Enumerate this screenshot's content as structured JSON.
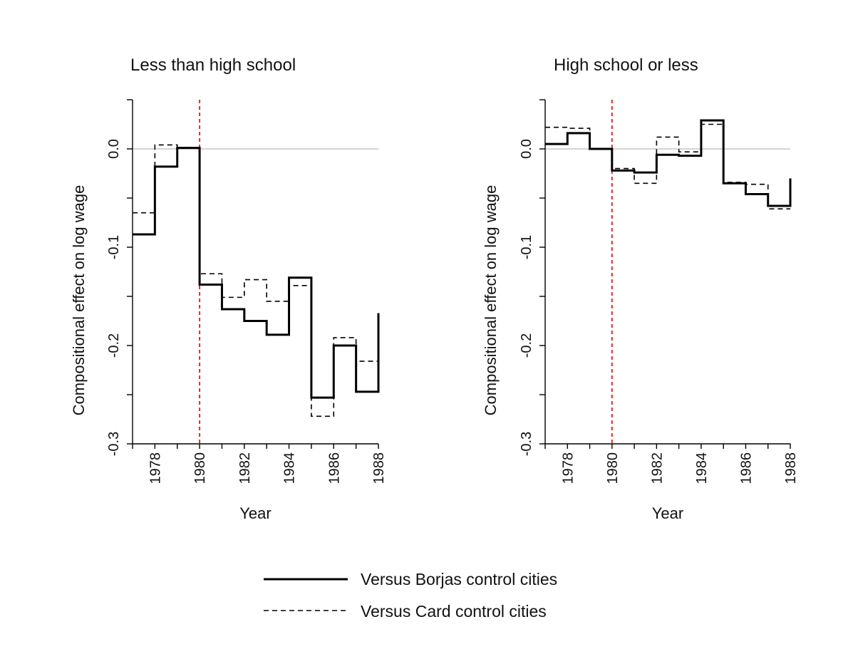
{
  "chart_data": [
    {
      "type": "line",
      "step": "post",
      "title": "Less than high school",
      "xlabel": "Year",
      "ylabel": "Compositional effect on log wage",
      "xlim": [
        1977,
        1988
      ],
      "ylim": [
        -0.3,
        0.05
      ],
      "xticks": [
        1978,
        1980,
        1982,
        1984,
        1986,
        1988
      ],
      "xtick_labels": [
        "1978",
        "1980",
        "1982",
        "1984",
        "1986",
        "1988"
      ],
      "yticks": [
        -0.3,
        -0.2,
        -0.1,
        0.0
      ],
      "ytick_labels": [
        "-0.3",
        "-0.2",
        "-0.1",
        "0.0"
      ],
      "reference_hline": 0.0,
      "reference_vline": 1980,
      "series": [
        {
          "name": "Versus Borjas control cities",
          "style": "solid",
          "x": [
            1977,
            1978,
            1979,
            1980,
            1981,
            1982,
            1983,
            1984,
            1985,
            1986,
            1987,
            1988
          ],
          "y": [
            -0.087,
            -0.018,
            0.001,
            -0.138,
            -0.163,
            -0.175,
            -0.189,
            -0.131,
            -0.253,
            -0.2,
            -0.247,
            -0.167
          ]
        },
        {
          "name": "Versus Card control cities",
          "style": "dashed",
          "x": [
            1977,
            1978,
            1979,
            1980,
            1981,
            1982,
            1983,
            1984,
            1985,
            1986,
            1987,
            1988
          ],
          "y": [
            -0.065,
            0.004,
            0.001,
            -0.127,
            -0.151,
            -0.133,
            -0.155,
            -0.139,
            -0.272,
            -0.192,
            -0.216,
            -0.216
          ]
        }
      ]
    },
    {
      "type": "line",
      "step": "post",
      "title": "High school or less",
      "xlabel": "Year",
      "ylabel": "Compositional effect on log wage",
      "xlim": [
        1977,
        1988
      ],
      "ylim": [
        -0.3,
        0.05
      ],
      "xticks": [
        1978,
        1980,
        1982,
        1984,
        1986,
        1988
      ],
      "xtick_labels": [
        "1978",
        "1980",
        "1982",
        "1984",
        "1986",
        "1988"
      ],
      "yticks": [
        -0.3,
        -0.2,
        -0.1,
        0.0
      ],
      "ytick_labels": [
        "-0.3",
        "-0.2",
        "-0.1",
        "0.0"
      ],
      "reference_hline": 0.0,
      "reference_vline": 1980,
      "series": [
        {
          "name": "Versus Borjas control cities",
          "style": "solid",
          "x": [
            1977,
            1978,
            1979,
            1980,
            1981,
            1982,
            1983,
            1984,
            1985,
            1986,
            1987,
            1988
          ],
          "y": [
            0.005,
            0.016,
            0.0,
            -0.022,
            -0.024,
            -0.006,
            -0.007,
            0.029,
            -0.035,
            -0.046,
            -0.058,
            -0.03
          ]
        },
        {
          "name": "Versus Card control cities",
          "style": "dashed",
          "x": [
            1977,
            1978,
            1979,
            1980,
            1981,
            1982,
            1983,
            1984,
            1985,
            1986,
            1987,
            1988
          ],
          "y": [
            0.022,
            0.021,
            0.0,
            -0.02,
            -0.035,
            0.012,
            -0.003,
            0.025,
            -0.034,
            -0.036,
            -0.061,
            -0.061
          ]
        }
      ]
    }
  ],
  "legend": {
    "placement": "bottom-center",
    "items": [
      {
        "label": "Versus Borjas control cities",
        "style": "solid"
      },
      {
        "label": "Versus Card control cities",
        "style": "dashed"
      }
    ]
  },
  "colors": {
    "series": "#000000",
    "reference_vline": "#e8282b",
    "zero_line": "#bbbbbb",
    "axis": "#000000"
  }
}
